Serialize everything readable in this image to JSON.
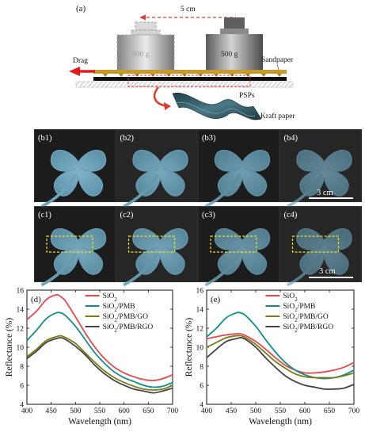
{
  "panel_a": {
    "label": "(a)",
    "distance": "5 cm",
    "weight_ghost": "500 g",
    "weight_solid": "500 g",
    "drag": "Drag",
    "sandpaper": "Sandpaper",
    "psps": "PSPs",
    "kraft": "Kraft paper"
  },
  "photos_b": [
    "(b1)",
    "(b2)",
    "(b3)",
    "(b4)"
  ],
  "photos_c": [
    "(c1)",
    "(c2)",
    "(c3)",
    "(c4)"
  ],
  "scale_bar_b": "3 cm",
  "scale_bar_c": "3 cm",
  "chart_data": [
    {
      "type": "line",
      "panel": "(d)",
      "xlabel": "Wavelength (nm)",
      "ylabel": "Reflectance (%)",
      "xlim": [
        400,
        700
      ],
      "ylim": [
        4,
        16
      ],
      "xticks": [
        "400",
        "450",
        "500",
        "550",
        "600",
        "650",
        "700"
      ],
      "yticks": [
        "4",
        "6",
        "8",
        "10",
        "12",
        "14",
        "16"
      ],
      "x": [
        400,
        420,
        440,
        460,
        470,
        480,
        500,
        520,
        540,
        560,
        580,
        600,
        620,
        640,
        660,
        680,
        700
      ],
      "series": [
        {
          "name": "SiO2",
          "label_main": "SiO",
          "label_sub": "2",
          "label_rest": "",
          "color": "#e8484d",
          "values": [
            12.9,
            13.8,
            15.0,
            15.5,
            15.3,
            14.8,
            13.2,
            11.5,
            10.0,
            8.8,
            7.9,
            7.3,
            6.9,
            6.6,
            6.5,
            6.7,
            7.1
          ]
        },
        {
          "name": "SiO2/PMB",
          "label_main": "SiO",
          "label_sub": "2",
          "label_rest": "/PMB",
          "color": "#0f8f8a",
          "values": [
            10.7,
            11.8,
            13.0,
            13.6,
            13.6,
            13.3,
            12.2,
            10.8,
            9.4,
            8.3,
            7.4,
            6.8,
            6.4,
            6.0,
            5.8,
            5.9,
            6.3
          ]
        },
        {
          "name": "SiO2/PMB/GO",
          "label_main": "SiO",
          "label_sub": "2",
          "label_rest": "/PMB/GO",
          "color": "#7b7b16",
          "values": [
            9.0,
            9.8,
            10.7,
            11.1,
            11.2,
            11.0,
            10.4,
            9.4,
            8.4,
            7.5,
            6.8,
            6.3,
            5.9,
            5.6,
            5.5,
            5.6,
            6.0
          ]
        },
        {
          "name": "SiO2/PMB/RGO",
          "label_main": "SiO",
          "label_sub": "2",
          "label_rest": "/PMB/RGO",
          "color": "#444444",
          "values": [
            8.8,
            9.6,
            10.5,
            10.9,
            11.0,
            10.8,
            10.1,
            9.2,
            8.1,
            7.2,
            6.5,
            6.0,
            5.6,
            5.4,
            5.2,
            5.4,
            5.7
          ]
        }
      ]
    },
    {
      "type": "line",
      "panel": "(e)",
      "xlabel": "Wavelength (nm)",
      "ylabel": "Reflectance (%)",
      "xlim": [
        400,
        700
      ],
      "ylim": [
        4,
        16
      ],
      "xticks": [
        "400",
        "450",
        "500",
        "550",
        "600",
        "650",
        "700"
      ],
      "yticks": [
        "4",
        "6",
        "8",
        "10",
        "12",
        "14",
        "16"
      ],
      "x": [
        400,
        420,
        440,
        460,
        470,
        480,
        500,
        520,
        540,
        560,
        580,
        600,
        620,
        640,
        660,
        680,
        700
      ],
      "series": [
        {
          "name": "SiO2",
          "label_main": "SiO",
          "label_sub": "2",
          "label_rest": "",
          "color": "#e8484d",
          "values": [
            10.9,
            11.1,
            11.3,
            11.4,
            11.4,
            11.2,
            10.6,
            9.8,
            8.9,
            8.1,
            7.6,
            7.3,
            7.3,
            7.4,
            7.6,
            7.9,
            8.4
          ]
        },
        {
          "name": "SiO2/PMB",
          "label_main": "SiO",
          "label_sub": "2",
          "label_rest": "/PMB",
          "color": "#0f8f8a",
          "values": [
            11.1,
            12.0,
            13.1,
            13.6,
            13.6,
            13.3,
            12.2,
            10.8,
            9.5,
            8.4,
            7.6,
            7.1,
            6.8,
            6.7,
            6.8,
            7.1,
            7.6
          ]
        },
        {
          "name": "SiO2/PMB/GO",
          "label_main": "SiO",
          "label_sub": "2",
          "label_rest": "/PMB/GO",
          "color": "#7b7b16",
          "values": [
            10.0,
            10.5,
            11.0,
            11.2,
            11.2,
            11.0,
            10.3,
            9.4,
            8.5,
            7.8,
            7.2,
            6.9,
            6.8,
            6.8,
            6.8,
            7.0,
            7.3
          ]
        },
        {
          "name": "SiO2/PMB/RGO",
          "label_main": "SiO",
          "label_sub": "2",
          "label_rest": "/PMB/RGO",
          "color": "#444444",
          "values": [
            8.9,
            9.8,
            10.6,
            10.9,
            11.0,
            10.8,
            10.0,
            8.9,
            7.9,
            7.0,
            6.4,
            6.0,
            5.8,
            5.6,
            5.6,
            5.7,
            6.1
          ]
        }
      ]
    }
  ]
}
